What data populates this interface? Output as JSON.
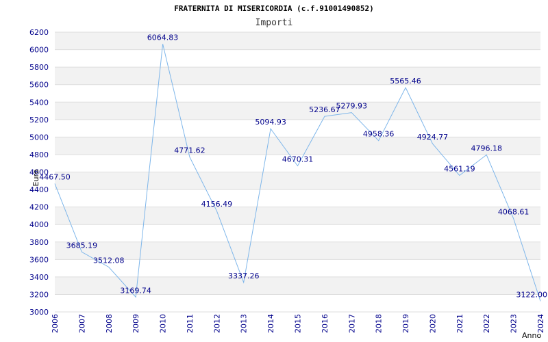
{
  "chart_data": {
    "type": "line",
    "title": "FRATERNITA DI MISERICORDIA (c.f.91001490852)",
    "subtitle": "Importi",
    "xlabel": "Anno",
    "ylabel": "Euro",
    "ylim": [
      3000,
      6200
    ],
    "ytick_step": 200,
    "grid": true,
    "categories": [
      "2006",
      "2007",
      "2008",
      "2009",
      "2010",
      "2011",
      "2012",
      "2013",
      "2014",
      "2015",
      "2016",
      "2017",
      "2018",
      "2019",
      "2020",
      "2021",
      "2022",
      "2023",
      "2024"
    ],
    "values": [
      4467.5,
      3685.19,
      3512.08,
      3169.74,
      6064.83,
      4771.62,
      4156.49,
      3337.26,
      5094.93,
      4670.31,
      5236.67,
      5279.93,
      4958.36,
      5565.46,
      4924.77,
      4561.19,
      4796.18,
      4068.61,
      3122.0
    ],
    "data_labels": [
      "4467.50",
      "3685.19",
      "3512.08",
      "3169.74",
      "6064.83",
      "4771.62",
      "4156.49",
      "3337.26",
      "5094.93",
      "4670.31",
      "5236.67",
      "5279.93",
      "4958.36",
      "5565.46",
      "4924.77",
      "4561.19",
      "4796.18",
      "4068.61",
      "3122.00"
    ],
    "colors": {
      "line": "#7eb6ea",
      "band": "#f2f2f2",
      "grid": "#dddddd",
      "tick": "#00008b"
    }
  }
}
